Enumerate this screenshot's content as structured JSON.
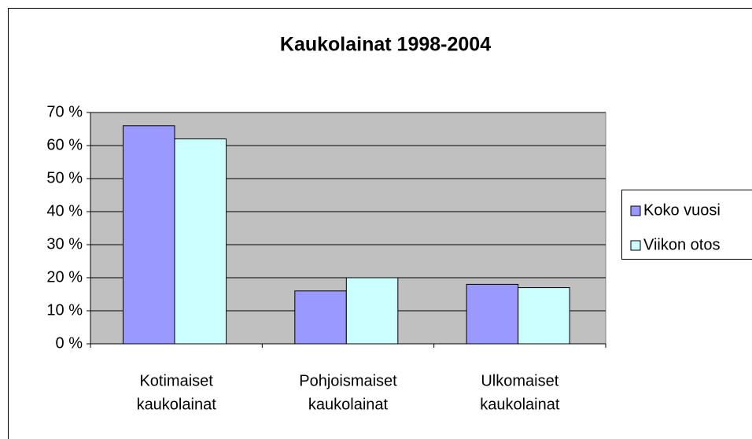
{
  "chart_data": {
    "type": "bar",
    "title": "Kaukolainat 1998-2004",
    "categories": [
      [
        "Kotimaiset",
        "kaukolainat"
      ],
      [
        "Pohjoismaiset",
        "kaukolainat"
      ],
      [
        "Ulkomaiset",
        "kaukolainat"
      ]
    ],
    "series": [
      {
        "name": "Koko vuosi",
        "color": "#9999ff",
        "values": [
          66,
          16,
          18
        ]
      },
      {
        "name": "Viikon otos",
        "color": "#ccffff",
        "values": [
          62,
          20,
          17
        ]
      }
    ],
    "ylim": [
      0,
      70
    ],
    "yticks": [
      {
        "value": 0,
        "label": "0 %"
      },
      {
        "value": 10,
        "label": "10 %"
      },
      {
        "value": 20,
        "label": "20 %"
      },
      {
        "value": 30,
        "label": "30 %"
      },
      {
        "value": 40,
        "label": "40 %"
      },
      {
        "value": 50,
        "label": "50 %"
      },
      {
        "value": 60,
        "label": "60 %"
      },
      {
        "value": 70,
        "label": "70 %"
      }
    ],
    "grid": true,
    "legend": "right"
  }
}
